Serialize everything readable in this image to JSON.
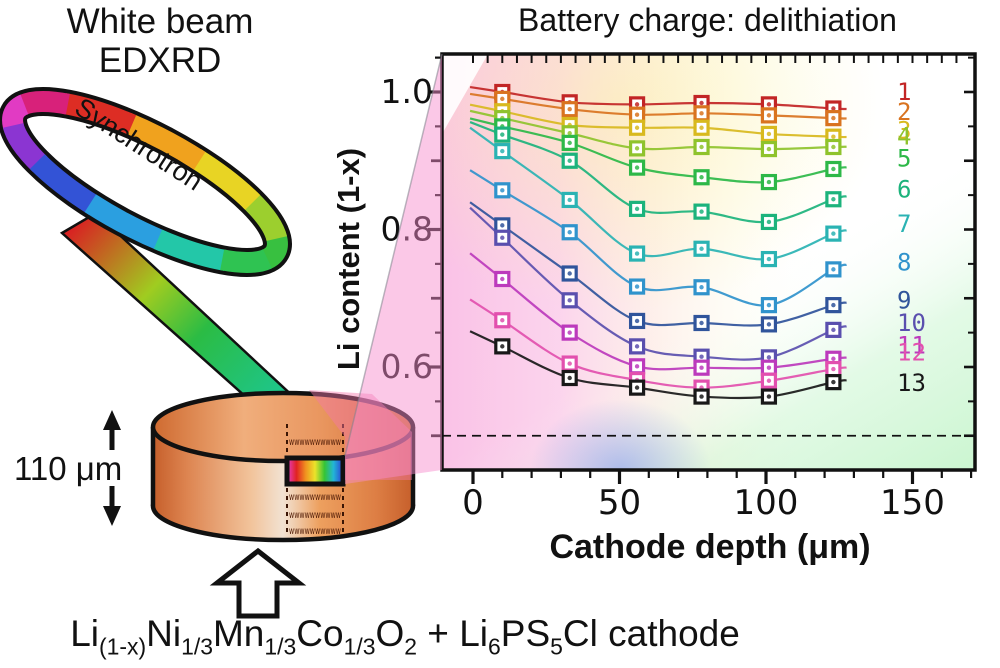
{
  "diagram": {
    "title_line1": "White beam",
    "title_line2": "EDXRD",
    "synchrotron_label": "Synchrotron",
    "thickness_label": "110 μm",
    "formula": {
      "segments": [
        {
          "t": "Li",
          "sub": "(1-x)"
        },
        {
          "t": "Ni",
          "sub": "1/3"
        },
        {
          "t": "Mn",
          "sub": "1/3"
        },
        {
          "t": "Co",
          "sub": "1/3"
        },
        {
          "t": "O",
          "sub": "2"
        },
        {
          "t": " + "
        },
        {
          "t": "Li",
          "sub": "6"
        },
        {
          "t": "PS",
          "sub": "5"
        },
        {
          "t": "Cl"
        },
        {
          "t": " cathode"
        }
      ]
    },
    "ring_segment_colors": [
      "#38c040",
      "#9ccf2e",
      "#e8d424",
      "#f0a21e",
      "#dd2d24",
      "#d8217a",
      "#e13bc3",
      "#8b35d2",
      "#3353d6",
      "#2b9fe0",
      "#23c7a8",
      "#2fc352"
    ],
    "beam_gradient": [
      "#d82222",
      "#a0cc20",
      "#2bbc44",
      "#19c9a4"
    ],
    "cylinder_colors": {
      "body_edge": "#c65f2b",
      "body_mid": "#eda05f",
      "body_highlight": "#f2e2d2",
      "top_face": "#e9965f",
      "top_rim": "#cf6a30",
      "outline": "#111111"
    },
    "gauge_gradient": [
      "#e83ec8",
      "#e02222",
      "#f09020",
      "#ece32a",
      "#35c435",
      "#22b6d6",
      "#2b3ed6"
    ],
    "cone_color": "#f48cc9"
  },
  "chart_data": {
    "type": "scatter",
    "title": "Battery charge: delithiation",
    "xlabel": "Cathode depth (μm)",
    "ylabel": "Li content (1-x)",
    "x_ticks": [
      0,
      50,
      100,
      150
    ],
    "y_ticks": [
      1.0,
      0.8,
      0.6
    ],
    "x_minor_step": 10,
    "y_minor_step": 0.05,
    "top_tick_step": 5,
    "xlim": [
      -10,
      171
    ],
    "ylim": [
      0.45,
      1.055
    ],
    "grid": false,
    "dashed_line_y": 0.5,
    "legend_position": "right-inside",
    "x": [
      10,
      33,
      56,
      78,
      101,
      123
    ],
    "series": [
      {
        "name": "1",
        "color": "#c22525",
        "legend_y": 1.0,
        "values": [
          1.0,
          0.985,
          0.982,
          0.984,
          0.982,
          0.976
        ]
      },
      {
        "name": "2",
        "color": "#d9731f",
        "legend_y": 0.971,
        "values": [
          0.99,
          0.975,
          0.967,
          0.969,
          0.966,
          0.962
        ]
      },
      {
        "name": "3",
        "color": "#d8b91e",
        "legend_y": 0.944,
        "values": [
          0.972,
          0.952,
          0.948,
          0.948,
          0.939,
          0.935
        ]
      },
      {
        "name": "4",
        "color": "#8fc32c",
        "legend_y": 0.935,
        "values": [
          0.962,
          0.94,
          0.918,
          0.92,
          0.917,
          0.92
        ]
      },
      {
        "name": "5",
        "color": "#2db848",
        "legend_y": 0.903,
        "values": [
          0.95,
          0.926,
          0.89,
          0.876,
          0.869,
          0.888
        ]
      },
      {
        "name": "6",
        "color": "#1cb37c",
        "legend_y": 0.858,
        "values": [
          0.938,
          0.9,
          0.83,
          0.826,
          0.811,
          0.844
        ]
      },
      {
        "name": "7",
        "color": "#2ab3b3",
        "legend_y": 0.808,
        "values": [
          0.914,
          0.843,
          0.765,
          0.772,
          0.757,
          0.794
        ]
      },
      {
        "name": "8",
        "color": "#3093cc",
        "legend_y": 0.752,
        "values": [
          0.857,
          0.796,
          0.717,
          0.716,
          0.69,
          0.742
        ]
      },
      {
        "name": "9",
        "color": "#30549b",
        "legend_y": 0.697,
        "values": [
          0.806,
          0.736,
          0.667,
          0.664,
          0.662,
          0.69
        ]
      },
      {
        "name": "10",
        "color": "#5a4fae",
        "legend_y": 0.664,
        "values": [
          0.788,
          0.697,
          0.63,
          0.615,
          0.614,
          0.654
        ]
      },
      {
        "name": "11",
        "color": "#bc3abc",
        "legend_y": 0.631,
        "values": [
          0.728,
          0.65,
          0.601,
          0.599,
          0.599,
          0.612
        ]
      },
      {
        "name": "12",
        "color": "#e250ae",
        "legend_y": 0.621,
        "values": [
          0.668,
          0.605,
          0.581,
          0.57,
          0.58,
          0.597
        ]
      },
      {
        "name": "13",
        "color": "#181818",
        "legend_y": 0.577,
        "values": [
          0.63,
          0.584,
          0.57,
          0.557,
          0.557,
          0.578
        ]
      }
    ]
  }
}
